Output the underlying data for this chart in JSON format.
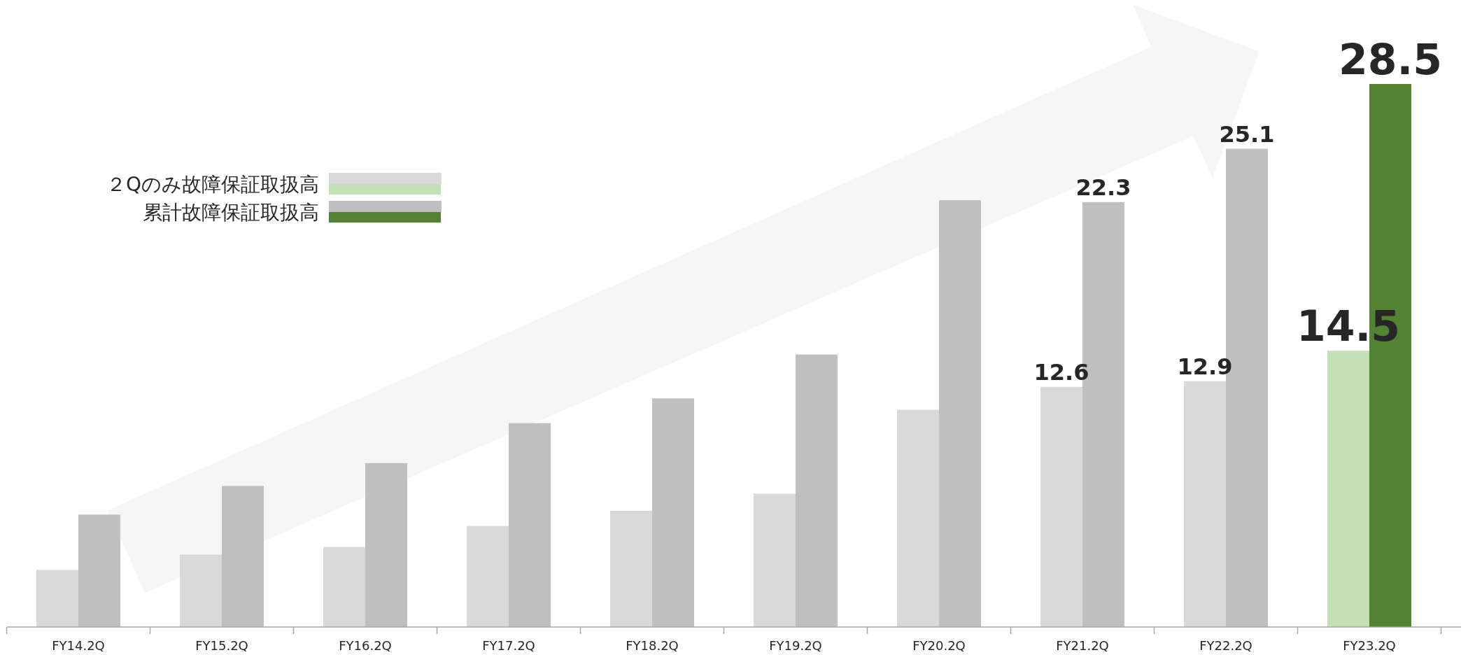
{
  "chart_data": {
    "type": "bar",
    "categories": [
      "FY14.2Q",
      "FY15.2Q",
      "FY16.2Q",
      "FY17.2Q",
      "FY18.2Q",
      "FY19.2Q",
      "FY20.2Q",
      "FY21.2Q",
      "FY22.2Q",
      "FY23.2Q"
    ],
    "series": [
      {
        "name": "２Qのみ故障保証取扱高",
        "colors": [
          "#d9d9d9",
          "#d9d9d9",
          "#d9d9d9",
          "#d9d9d9",
          "#d9d9d9",
          "#d9d9d9",
          "#d9d9d9",
          "#d9d9d9",
          "#d9d9d9",
          "#c5e0b4"
        ],
        "values": [
          3.0,
          3.8,
          4.2,
          5.3,
          6.1,
          7.0,
          11.4,
          12.6,
          12.9,
          14.5
        ],
        "value_labels": [
          null,
          null,
          null,
          null,
          null,
          null,
          null,
          "12.6",
          "12.9",
          "14.5"
        ]
      },
      {
        "name": "累計故障保証取扱高",
        "colors": [
          "#bfbfbf",
          "#bfbfbf",
          "#bfbfbf",
          "#bfbfbf",
          "#bfbfbf",
          "#bfbfbf",
          "#bfbfbf",
          "#bfbfbf",
          "#bfbfbf",
          "#548235"
        ],
        "values": [
          5.9,
          7.4,
          8.6,
          10.7,
          12.0,
          14.3,
          22.4,
          22.3,
          25.1,
          28.5
        ],
        "value_labels": [
          null,
          null,
          null,
          null,
          null,
          null,
          null,
          "22.3",
          "25.1",
          "28.5"
        ]
      }
    ],
    "legend": "top left"
  }
}
